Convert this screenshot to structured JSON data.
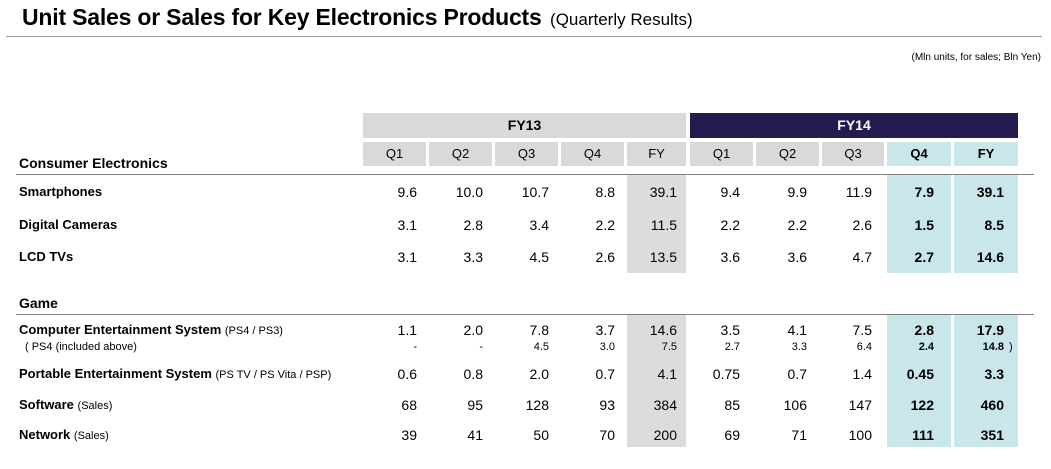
{
  "title": {
    "main": "Unit Sales or Sales for Key Electronics Products",
    "sub": "(Quarterly Results)"
  },
  "units_note": "(Mln units, for sales; Bln Yen)",
  "periods": {
    "fy13": "FY13",
    "fy14": "FY14"
  },
  "columns": [
    "Q1",
    "Q2",
    "Q3",
    "Q4",
    "FY",
    "Q1",
    "Q2",
    "Q3",
    "Q4",
    "FY"
  ],
  "sections": {
    "consumer": "Consumer Electronics",
    "game": "Game"
  },
  "rows": {
    "smartphones": {
      "label": "Smartphones",
      "values": [
        "9.6",
        "10.0",
        "10.7",
        "8.8",
        "39.1",
        "9.4",
        "9.9",
        "11.9",
        "7.9",
        "39.1"
      ]
    },
    "cameras": {
      "label": "Digital Cameras",
      "values": [
        "3.1",
        "2.8",
        "3.4",
        "2.2",
        "11.5",
        "2.2",
        "2.2",
        "2.6",
        "1.5",
        "8.5"
      ]
    },
    "tvs": {
      "label": "LCD TVs",
      "values": [
        "3.1",
        "3.3",
        "4.5",
        "2.6",
        "13.5",
        "3.6",
        "3.6",
        "4.7",
        "2.7",
        "14.6"
      ]
    },
    "ces": {
      "label": "Computer Entertainment System",
      "note": "(PS4 / PS3)",
      "values": [
        "1.1",
        "2.0",
        "7.8",
        "3.7",
        "14.6",
        "3.5",
        "4.1",
        "7.5",
        "2.8",
        "17.9"
      ]
    },
    "ps4": {
      "label": "( PS4 (included above)",
      "close": ")",
      "values": [
        "-",
        "-",
        "4.5",
        "3.0",
        "7.5",
        "2.7",
        "3.3",
        "6.4",
        "2.4",
        "14.8"
      ]
    },
    "pes": {
      "label": "Portable Entertainment System",
      "note": "(PS TV / PS Vita / PSP)",
      "values": [
        "0.6",
        "0.8",
        "2.0",
        "0.7",
        "4.1",
        "0.75",
        "0.7",
        "1.4",
        "0.45",
        "3.3"
      ]
    },
    "software": {
      "label": "Software",
      "note": "(Sales)",
      "values": [
        "68",
        "95",
        "128",
        "93",
        "384",
        "85",
        "106",
        "147",
        "122",
        "460"
      ]
    },
    "network": {
      "label": "Network",
      "note": "(Sales)",
      "values": [
        "39",
        "41",
        "50",
        "70",
        "200",
        "69",
        "71",
        "100",
        "111",
        "351"
      ]
    }
  },
  "colors": {
    "fy13_band": "#d9d9d9",
    "fy14_band": "#241c4e",
    "highlight": "#c9e7ea",
    "fy_shade": "#dcdcdc"
  }
}
